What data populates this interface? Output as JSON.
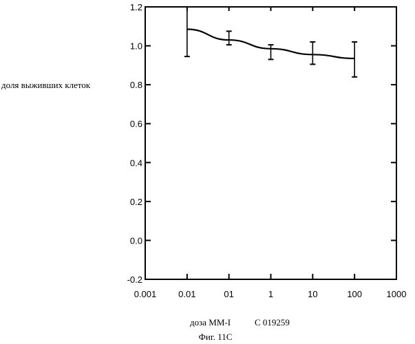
{
  "chart_data": {
    "type": "line",
    "title": "",
    "xlabel": "доза ММ-I",
    "ylabel": "доля выживших клеток",
    "x_scale": "log",
    "xlim": [
      0.001,
      1000
    ],
    "ylim": [
      -0.2,
      1.2
    ],
    "x_tick_labels": [
      "0.001",
      "0.01",
      "01",
      "1",
      "10",
      "100",
      "1000"
    ],
    "y_tick_labels": [
      "1.2",
      "1.0",
      "0.8",
      "0.6",
      "0.4",
      "0.2",
      "0.0",
      "-0.2"
    ],
    "grid": false,
    "series": [
      {
        "x": [
          0.01,
          0.1,
          1,
          10,
          100
        ],
        "y": [
          1.085,
          1.03,
          0.985,
          0.955,
          0.935
        ],
        "error_low": [
          0.945,
          1.005,
          0.93,
          0.905,
          0.84
        ],
        "error_high": [
          1.2,
          1.075,
          1.005,
          1.02,
          1.02
        ]
      }
    ]
  },
  "patent_number": "C 019259",
  "figure_caption": "Фиг. 11С"
}
